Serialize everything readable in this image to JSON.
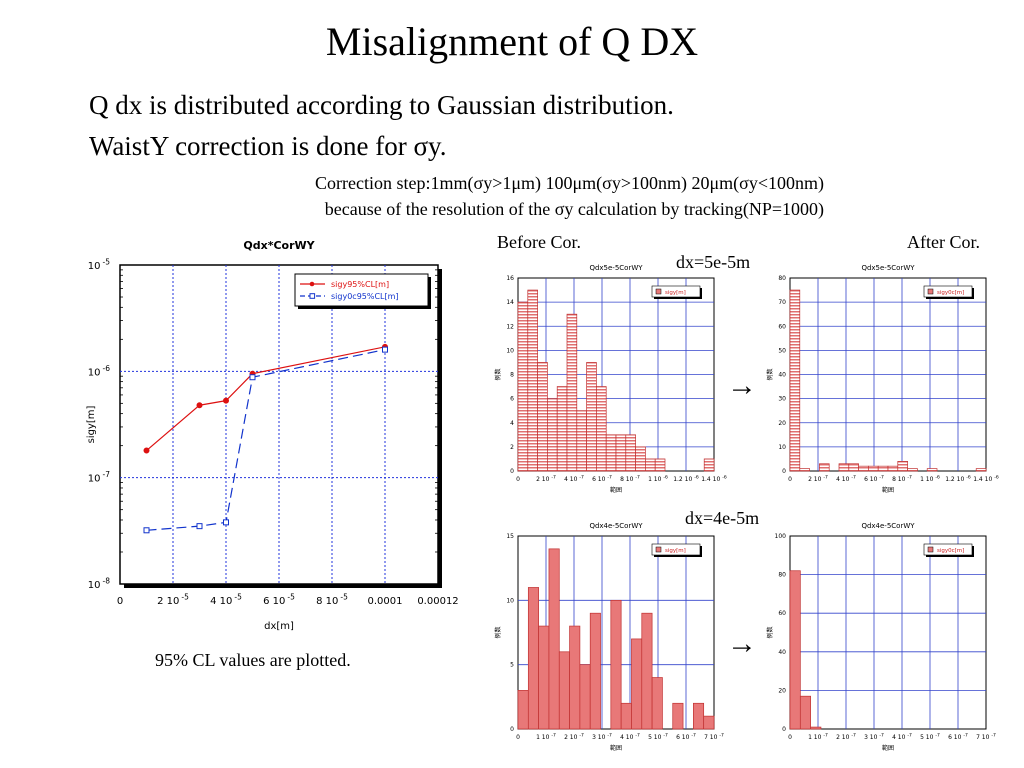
{
  "slide": {
    "title": "Misalignment of Q DX",
    "bullet1": "Q dx is distributed according to Gaussian distribution.",
    "bullet2": "WaistY correction is done for σy.",
    "note1": "Correction step:1mm(σy>1μm) 100μm(σy>100nm) 20μm(σy<100nm)",
    "note2": "because of the resolution of the σy calculation by tracking(NP=1000)",
    "before_label": "Before Cor.",
    "after_label": "After Cor.",
    "dx1_label": "dx=5e-5m",
    "dx2_label": "dx=4e-5m",
    "arrow": "→",
    "caption": "95% CL values are plotted."
  },
  "chart_data": [
    {
      "id": "main",
      "type": "line",
      "title": "Qdx*CorWY",
      "xlabel": "dx[m]",
      "ylabel": "sigy[m]",
      "xlim": [
        0,
        0.00012
      ],
      "ylim": [
        1e-08,
        1e-05
      ],
      "yscale": "log",
      "grid": true,
      "legend": "top-right",
      "xticks": [
        {
          "v": 0,
          "label": "0"
        },
        {
          "v": 2e-05,
          "label": "2 10",
          "exp": "-5"
        },
        {
          "v": 4e-05,
          "label": "4 10",
          "exp": "-5"
        },
        {
          "v": 6e-05,
          "label": "6 10",
          "exp": "-5"
        },
        {
          "v": 8e-05,
          "label": "8 10",
          "exp": "-5"
        },
        {
          "v": 0.0001,
          "label": "0.0001"
        },
        {
          "v": 0.00012,
          "label": "0.00012"
        }
      ],
      "yticks": [
        {
          "v": 1e-05,
          "label": "10",
          "exp": "-5"
        },
        {
          "v": 1e-06,
          "label": "10",
          "exp": "-6"
        },
        {
          "v": 1e-07,
          "label": "10",
          "exp": "-7"
        },
        {
          "v": 1e-08,
          "label": "10",
          "exp": "-8"
        }
      ],
      "series": [
        {
          "name": "sigy95%CL[m]",
          "color": "#dd1111",
          "marker": "circle",
          "dash": false,
          "x": [
            1e-05,
            3e-05,
            4e-05,
            5e-05,
            0.0001
          ],
          "y": [
            1.8e-07,
            4.8e-07,
            5.3e-07,
            9.5e-07,
            1.7e-06
          ]
        },
        {
          "name": "sigy0c95%CL[m]",
          "color": "#1133cc",
          "marker": "square",
          "dash": true,
          "x": [
            1e-05,
            3e-05,
            4e-05,
            5e-05,
            0.0001
          ],
          "y": [
            3.2e-08,
            3.5e-08,
            3.8e-08,
            8.8e-07,
            1.6e-06
          ]
        }
      ]
    },
    {
      "id": "h1",
      "type": "bar",
      "title": "Qdx5e-5CorWY",
      "xlabel": "範囲",
      "ylabel": "例数",
      "legend": "sigy[m]",
      "ylim": [
        0,
        16
      ],
      "yticks": [
        0,
        2,
        4,
        6,
        8,
        10,
        12,
        14,
        16
      ],
      "xticks": [
        {
          "t": "0"
        },
        {
          "t": "2 10",
          "e": "-7"
        },
        {
          "t": "4 10",
          "e": "-7"
        },
        {
          "t": "6 10",
          "e": "-7"
        },
        {
          "t": "8 10",
          "e": "-7"
        },
        {
          "t": "1 10",
          "e": "-6"
        },
        {
          "t": "1.2 10",
          "e": "-6"
        },
        {
          "t": "1.4 10",
          "e": "-6"
        }
      ],
      "values": [
        14,
        15,
        9,
        6,
        7,
        13,
        5,
        9,
        7,
        3,
        3,
        3,
        2,
        1,
        1,
        0,
        0,
        0,
        0,
        1
      ]
    },
    {
      "id": "h2",
      "type": "bar",
      "title": "Qdx5e-5CorWY",
      "xlabel": "範囲",
      "ylabel": "例数",
      "legend": "sigy0c[m]",
      "ylim": [
        0,
        80
      ],
      "yticks": [
        0,
        10,
        20,
        30,
        40,
        50,
        60,
        70,
        80
      ],
      "xticks": [
        {
          "t": "0"
        },
        {
          "t": "2 10",
          "e": "-7"
        },
        {
          "t": "4 10",
          "e": "-7"
        },
        {
          "t": "6 10",
          "e": "-7"
        },
        {
          "t": "8 10",
          "e": "-7"
        },
        {
          "t": "1 10",
          "e": "-6"
        },
        {
          "t": "1.2 10",
          "e": "-6"
        },
        {
          "t": "1.4 10",
          "e": "-6"
        }
      ],
      "values": [
        75,
        1,
        0,
        3,
        0,
        3,
        3,
        2,
        2,
        2,
        2,
        4,
        1,
        0,
        1,
        0,
        0,
        0,
        0,
        1
      ]
    },
    {
      "id": "h3",
      "type": "bar",
      "title": "Qdx4e-5CorWY",
      "xlabel": "範囲",
      "ylabel": "例数",
      "legend": "sigy[m]",
      "ylim": [
        0,
        15
      ],
      "yticks": [
        0,
        5,
        10,
        15
      ],
      "xticks": [
        {
          "t": "0"
        },
        {
          "t": "1 10",
          "e": "-7"
        },
        {
          "t": "2 10",
          "e": "-7"
        },
        {
          "t": "3 10",
          "e": "-7"
        },
        {
          "t": "4 10",
          "e": "-7"
        },
        {
          "t": "5 10",
          "e": "-7"
        },
        {
          "t": "6 10",
          "e": "-7"
        },
        {
          "t": "7 10",
          "e": "-7"
        }
      ],
      "values": [
        3,
        11,
        8,
        14,
        6,
        8,
        5,
        9,
        0,
        10,
        2,
        7,
        9,
        4,
        0,
        2,
        0,
        2,
        1
      ]
    },
    {
      "id": "h4",
      "type": "bar",
      "title": "Qdx4e-5CorWY",
      "xlabel": "範囲",
      "ylabel": "例数",
      "legend": "sigy0c[m]",
      "ylim": [
        0,
        100
      ],
      "yticks": [
        0,
        20,
        40,
        60,
        80,
        100
      ],
      "xticks": [
        {
          "t": "0"
        },
        {
          "t": "1 10",
          "e": "-7"
        },
        {
          "t": "2 10",
          "e": "-7"
        },
        {
          "t": "3 10",
          "e": "-7"
        },
        {
          "t": "4 10",
          "e": "-7"
        },
        {
          "t": "5 10",
          "e": "-7"
        },
        {
          "t": "6 10",
          "e": "-7"
        },
        {
          "t": "7 10",
          "e": "-7"
        }
      ],
      "values": [
        82,
        17,
        1,
        0,
        0,
        0,
        0,
        0,
        0,
        0,
        0,
        0,
        0,
        0,
        0,
        0,
        0,
        0,
        0
      ]
    }
  ]
}
